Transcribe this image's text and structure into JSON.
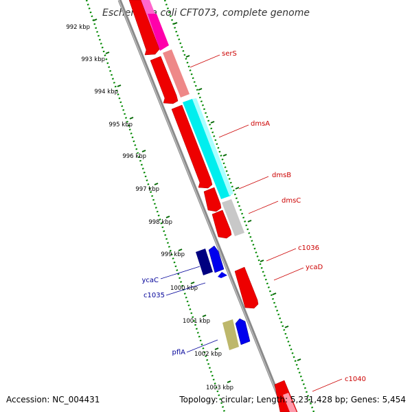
{
  "title": "Escherichia coli CFT073, complete genome",
  "footer": {
    "accession": "Accession: NC_004431",
    "topology": "Topology: circular; Length: 5,231,428 bp; Genes: 5,454"
  },
  "ticks": [
    {
      "label": "992 kbp"
    },
    {
      "label": "993 kbp"
    },
    {
      "label": "994 kbp"
    },
    {
      "label": "995 kbp"
    },
    {
      "label": "996 kbp"
    },
    {
      "label": "997 kbp"
    },
    {
      "label": "998 kbp"
    },
    {
      "label": "999 kbp"
    },
    {
      "label": "1000 kbp"
    },
    {
      "label": "1001 kbp"
    },
    {
      "label": "1002 kbp"
    },
    {
      "label": "1003 kbp"
    }
  ],
  "gene_labels": [
    {
      "name": "serS",
      "strand": "forward"
    },
    {
      "name": "dmsA",
      "strand": "forward"
    },
    {
      "name": "dmsB",
      "strand": "forward"
    },
    {
      "name": "dmsC",
      "strand": "forward"
    },
    {
      "name": "c1036",
      "strand": "forward"
    },
    {
      "name": "ycaD",
      "strand": "forward"
    },
    {
      "name": "c1040",
      "strand": "forward"
    },
    {
      "name": "ycaC",
      "strand": "reverse"
    },
    {
      "name": "c1035",
      "strand": "reverse"
    },
    {
      "name": "pflA",
      "strand": "reverse"
    }
  ],
  "colors": {
    "forward_cds": "#ff0000",
    "reverse_cds": "#0000ff",
    "forward_label": "#cc0000",
    "reverse_label": "#000099",
    "tick_mark": "#007700",
    "backbone": "#999999",
    "cog_magenta": "#ff00aa",
    "cog_salmon": "#ee8888",
    "cog_cyan": "#00eeee",
    "cog_gray": "#c8c8c8",
    "cog_navy": "#000080",
    "cog_khaki": "#bdb76b",
    "cog_olive": "#667722"
  }
}
